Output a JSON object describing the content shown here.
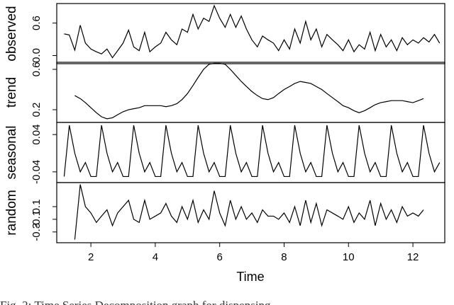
{
  "chart_data": {
    "type": "line",
    "xlabel": "Time",
    "caption": "Fig. 2: Time Series Decomposition graph for dispensing",
    "xlim": [
      0.94,
      12.99
    ],
    "xticks": [
      2,
      4,
      6,
      8,
      10,
      12
    ],
    "x": [
      1.17,
      1.33,
      1.5,
      1.67,
      1.83,
      2,
      2.17,
      2.33,
      2.5,
      2.67,
      2.83,
      3,
      3.17,
      3.33,
      3.5,
      3.67,
      3.83,
      4,
      4.17,
      4.33,
      4.5,
      4.67,
      4.83,
      5,
      5.17,
      5.33,
      5.5,
      5.67,
      5.83,
      6,
      6.17,
      6.33,
      6.5,
      6.67,
      6.83,
      7,
      7.17,
      7.33,
      7.5,
      7.67,
      7.83,
      8,
      8.17,
      8.33,
      8.5,
      8.67,
      8.83,
      9,
      9.17,
      9.33,
      9.5,
      9.67,
      9.83,
      10,
      10.17,
      10.33,
      10.5,
      10.67,
      10.83,
      11,
      11.17,
      11.33,
      11.5,
      11.67,
      11.83,
      12,
      12.17,
      12.33,
      12.5,
      12.67,
      12.83
    ],
    "series": [
      {
        "name": "observed",
        "color": "#000000",
        "ylim": [
          -0.15,
          0.96
        ],
        "yticks": [
          {
            "value": 0,
            "label": "0.0"
          },
          0.6
        ],
        "values": [
          0.4,
          0.38,
          0.1,
          0.56,
          0.23,
          0.12,
          0.07,
          0.03,
          0.12,
          -0.04,
          0.09,
          0.23,
          0.47,
          0.16,
          0.09,
          0.43,
          0.07,
          0.16,
          0.23,
          0.43,
          0.29,
          0.2,
          0.49,
          0.43,
          0.76,
          0.49,
          0.69,
          0.63,
          0.92,
          0.69,
          0.52,
          0.76,
          0.52,
          0.73,
          0.49,
          0.29,
          0.16,
          0.36,
          0.29,
          0.23,
          0.09,
          0.29,
          0.12,
          0.49,
          0.23,
          0.63,
          0.29,
          0.49,
          0.16,
          0.39,
          0.29,
          0.2,
          0.09,
          0.29,
          0.07,
          0.2,
          0.12,
          0.43,
          0.09,
          0.39,
          0.16,
          0.29,
          0.09,
          0.33,
          0.2,
          0.29,
          0.23,
          0.33,
          0.25,
          0.39,
          0.23
        ]
      },
      {
        "name": "trend",
        "color": "#000000",
        "ylim": [
          0.074,
          0.67
        ],
        "yticks": [
          0.2,
          0.6
        ],
        "values": [
          null,
          null,
          0.34,
          0.31,
          0.27,
          0.22,
          0.17,
          0.13,
          0.11,
          0.12,
          0.15,
          0.18,
          0.2,
          0.21,
          0.22,
          0.24,
          0.24,
          0.24,
          0.24,
          0.23,
          0.24,
          0.26,
          0.3,
          0.36,
          0.44,
          0.52,
          0.6,
          0.65,
          0.66,
          0.66,
          0.65,
          0.6,
          0.54,
          0.48,
          0.43,
          0.38,
          0.34,
          0.31,
          0.3,
          0.32,
          0.36,
          0.4,
          0.43,
          0.46,
          0.48,
          0.47,
          0.46,
          0.43,
          0.4,
          0.36,
          0.32,
          0.28,
          0.24,
          0.22,
          0.19,
          0.17,
          0.19,
          0.22,
          0.25,
          0.27,
          0.28,
          0.29,
          0.29,
          0.29,
          0.28,
          0.27,
          0.29,
          0.31,
          null,
          null,
          null
        ]
      },
      {
        "name": "seasonal",
        "color": "#000000",
        "ylim": [
          -0.063,
          0.066
        ],
        "yticks": [
          -0.04,
          0.04
        ],
        "values": [
          -0.05,
          0.06,
          0.0,
          -0.04,
          -0.02,
          -0.05,
          -0.05,
          0.06,
          0.0,
          -0.04,
          -0.02,
          -0.05,
          -0.05,
          0.06,
          0.0,
          -0.04,
          -0.02,
          -0.05,
          -0.05,
          0.06,
          0.0,
          -0.04,
          -0.02,
          -0.05,
          -0.05,
          0.06,
          0.0,
          -0.04,
          -0.02,
          -0.05,
          -0.05,
          0.06,
          0.0,
          -0.04,
          -0.02,
          -0.05,
          -0.05,
          0.06,
          0.0,
          -0.04,
          -0.02,
          -0.05,
          -0.05,
          0.06,
          0.0,
          -0.04,
          -0.02,
          -0.05,
          -0.05,
          0.06,
          0.0,
          -0.04,
          -0.02,
          -0.05,
          -0.05,
          0.06,
          0.0,
          -0.04,
          -0.02,
          -0.05,
          -0.05,
          0.06,
          0.0,
          -0.04,
          -0.02,
          -0.05,
          -0.05,
          0.06,
          0.0,
          -0.04,
          -0.02
        ]
      },
      {
        "name": "random",
        "color": "#000000",
        "ylim": [
          -0.47,
          0.48
        ],
        "yticks": [
          -0.3,
          -0.1,
          0.1
        ],
        "values": [
          null,
          null,
          -0.42,
          0.45,
          0.1,
          0.0,
          -0.15,
          -0.05,
          0.05,
          -0.2,
          0.0,
          0.1,
          0.2,
          -0.1,
          -0.15,
          0.2,
          -0.1,
          -0.05,
          0.0,
          0.15,
          -0.05,
          -0.15,
          0.1,
          -0.1,
          0.2,
          -0.15,
          0.05,
          -0.1,
          0.35,
          0.0,
          -0.2,
          0.2,
          -0.1,
          0.1,
          -0.1,
          0.0,
          -0.15,
          0.05,
          -0.05,
          -0.05,
          -0.1,
          0.0,
          -0.15,
          0.1,
          -0.2,
          0.2,
          -0.15,
          0.15,
          -0.2,
          0.05,
          0.0,
          -0.05,
          -0.1,
          0.1,
          -0.15,
          0.0,
          -0.1,
          0.2,
          -0.2,
          0.15,
          -0.1,
          0.05,
          -0.15,
          0.1,
          -0.05,
          0.0,
          -0.05,
          0.05,
          null,
          null,
          null
        ]
      }
    ]
  }
}
